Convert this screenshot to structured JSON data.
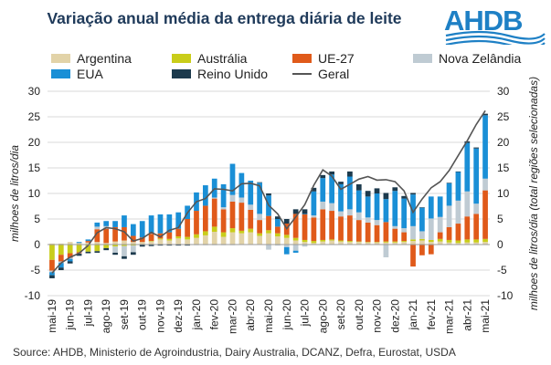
{
  "chart_data": {
    "type": "bar",
    "title": "Variação anual média da entrega diária de leite",
    "ylabel": "milhoes de litros/dia",
    "y2label": "milhoes de litros/dia (total regiões selecionadas)",
    "ylim": [
      -10,
      30
    ],
    "y2lim": [
      -10,
      30
    ],
    "yticks": [
      -10,
      -5,
      0,
      5,
      10,
      15,
      20,
      25,
      30
    ],
    "grid": true,
    "legend_position": "top",
    "stacked": true,
    "categories": [
      "mai-19",
      "",
      "jun-19",
      "",
      "jul-19",
      "",
      "ago-19",
      "",
      "set-19",
      "",
      "out-19",
      "",
      "nov-19",
      "",
      "dez-19",
      "",
      "jan-20",
      "",
      "fev-20",
      "",
      "mar-20",
      "",
      "abr-20",
      "",
      "mai-20",
      "",
      "jun-20",
      "",
      "jul-20",
      "",
      "ago-20",
      "",
      "set-20",
      "",
      "out-20",
      "",
      "nov-20",
      "",
      "dez-20",
      "",
      "jan-21",
      "",
      "fev-21",
      "",
      "mar-21",
      "",
      "abr-21",
      "",
      "mai-21"
    ],
    "x_tick_labels": [
      "mai-19",
      "jun-19",
      "jul-19",
      "ago-19",
      "set-19",
      "out-19",
      "nov-19",
      "dez-19",
      "jan-20",
      "fev-20",
      "mar-20",
      "abr-20",
      "mai-20",
      "jun-20",
      "jul-20",
      "ago-20",
      "set-20",
      "out-20",
      "nov-20",
      "dez-20",
      "jan-21",
      "fev-21",
      "mar-21",
      "abr-21",
      "mai-21"
    ],
    "series": [
      {
        "name": "Argentina",
        "color": "#e2d3a8",
        "values": [
          0.2,
          0.2,
          0.5,
          0.3,
          0.4,
          0.5,
          0.3,
          0.6,
          0.8,
          0.5,
          0.5,
          0.6,
          1.0,
          0.8,
          1.2,
          1.0,
          1.3,
          1.8,
          2.5,
          1.5,
          2.4,
          2.2,
          2.4,
          1.7,
          2.2,
          1.6,
          1.3,
          0.8,
          0.5,
          0.3,
          0.6,
          0.8,
          0.6,
          0.5,
          0.5,
          0.4,
          0.4,
          0.4,
          0.4,
          0.5,
          0.7,
          0.8,
          0.5,
          0.6,
          0.4,
          0.3,
          0.4,
          0.4,
          0.5
        ]
      },
      {
        "name": "Austrália",
        "color": "#c9cd1a",
        "values": [
          -3.0,
          -2.0,
          -1.7,
          -1.5,
          -1.4,
          -1.3,
          -0.7,
          -0.4,
          -0.3,
          -0.2,
          0.0,
          0.1,
          0.2,
          0.3,
          0.4,
          0.5,
          0.7,
          0.8,
          1.0,
          0.9,
          0.8,
          0.5,
          0.7,
          0.5,
          0.6,
          0.6,
          0.6,
          0.5,
          0.4,
          0.4,
          0.3,
          0.2,
          0.2,
          0.2,
          0.1,
          0.1,
          0.1,
          0.2,
          0.2,
          0.2,
          0.3,
          0.3,
          0.4,
          0.5,
          0.5,
          0.5,
          0.6,
          0.6,
          0.6
        ]
      },
      {
        "name": "UE-27",
        "color": "#e05a1a",
        "values": [
          -2.1,
          -1.3,
          -0.9,
          -0.2,
          0.3,
          2.5,
          2.8,
          2.8,
          2.6,
          1.2,
          0.9,
          1.4,
          1.0,
          1.3,
          1.5,
          3.5,
          4.6,
          5.0,
          5.5,
          4.5,
          5.2,
          5.5,
          3.7,
          2.6,
          2.8,
          1.3,
          2.2,
          4.7,
          5.0,
          4.6,
          6.0,
          5.6,
          4.7,
          5.0,
          4.2,
          3.8,
          3.3,
          3.8,
          2.5,
          1.7,
          -4.3,
          -2.1,
          -1.9,
          1.3,
          2.5,
          3.3,
          4.5,
          5.0,
          9.5
        ]
      },
      {
        "name": "Nova Zelândia",
        "color": "#bfcbd3",
        "values": [
          -0.3,
          -0.3,
          -0.2,
          -0.1,
          0.0,
          0.5,
          0.5,
          -1.2,
          -2.0,
          -1.3,
          0.0,
          0.2,
          0.0,
          0.0,
          0.0,
          0.0,
          0.0,
          0.0,
          0.2,
          0.4,
          1.3,
          1.0,
          1.0,
          1.2,
          -1.0,
          -0.2,
          -0.5,
          -1.2,
          -0.4,
          0.4,
          1.5,
          1.5,
          1.0,
          1.2,
          1.5,
          1.0,
          1.0,
          -2.5,
          0.5,
          0.8,
          2.6,
          1.5,
          4.2,
          3.0,
          4.2,
          4.5,
          4.9,
          2.0,
          2.3
        ]
      },
      {
        "name": "EUA",
        "color": "#1a8fd6",
        "values": [
          -0.6,
          -0.9,
          -0.5,
          0.2,
          0.3,
          0.8,
          1.0,
          1.2,
          2.3,
          2.3,
          3.2,
          3.4,
          3.7,
          3.5,
          3.2,
          2.6,
          3.6,
          4.0,
          3.7,
          4.5,
          6.1,
          4.8,
          4.7,
          6.1,
          4.0,
          1.5,
          -1.4,
          -0.4,
          0.1,
          4.7,
          4.6,
          5.6,
          5.3,
          6.4,
          4.3,
          4.1,
          5.2,
          4.5,
          6.9,
          5.8,
          6.2,
          4.6,
          4.3,
          4.0,
          4.4,
          5.6,
          9.5,
          10.8,
          12.4
        ]
      },
      {
        "name": "Reino Unido",
        "color": "#1c3a4d",
        "values": [
          -0.6,
          -0.5,
          -0.4,
          -0.4,
          -0.3,
          -0.3,
          -0.4,
          -0.4,
          -0.5,
          -0.5,
          -0.4,
          -0.3,
          -0.2,
          -0.2,
          -0.2,
          -0.2,
          -0.1,
          -0.1,
          -0.1,
          -0.1,
          -0.1,
          0.0,
          0.0,
          0.1,
          0.4,
          0.5,
          0.9,
          0.9,
          0.9,
          0.7,
          0.6,
          0.6,
          0.5,
          1.0,
          1.2,
          1.1,
          1.0,
          1.2,
          0.7,
          0.5,
          0.3,
          0.1,
          0.0,
          0.0,
          0.1,
          0.1,
          0.3,
          0.2,
          0.3
        ]
      }
    ],
    "line": {
      "name": "Geral",
      "color": "#555555",
      "values": [
        -5.6,
        -3.6,
        -2.5,
        -1.7,
        -0.2,
        2.3,
        3.3,
        3.1,
        2.5,
        0.7,
        1.2,
        2.4,
        1.5,
        2.8,
        3.3,
        6.2,
        8.4,
        9.0,
        10.9,
        10.8,
        10.5,
        11.9,
        12.0,
        11.5,
        7.7,
        6.0,
        3.1,
        5.4,
        7.8,
        11.6,
        14.6,
        13.4,
        10.8,
        11.8,
        12.8,
        13.3,
        12.6,
        12.7,
        12.3,
        10.5,
        6.3,
        8.9,
        11.1,
        12.3,
        14.5,
        17.4,
        20.3,
        23.5,
        26.2
      ]
    }
  },
  "source": "Source: AHDB, Ministerio de Agroindustria, Dairy Australia, DCANZ, Defra, Eurostat, USDA",
  "logo_text": "AHDB",
  "colors": {
    "title": "#1f3a5a",
    "logo": "#1e80c5",
    "grid": "#d9d9d9"
  }
}
